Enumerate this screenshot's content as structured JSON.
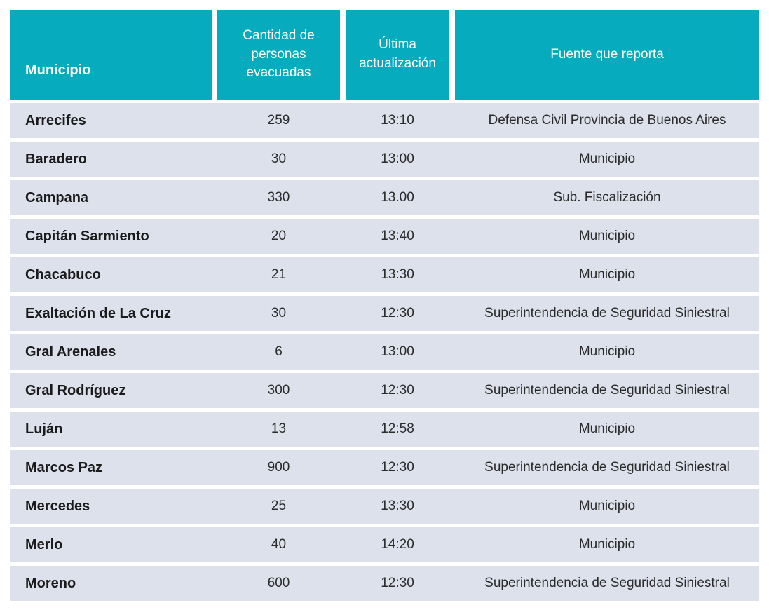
{
  "table": {
    "columns": [
      {
        "key": "municipio",
        "label": "Municipio"
      },
      {
        "key": "evacuados",
        "label": "Cantidad de personas evacuadas"
      },
      {
        "key": "actualizacion",
        "label": "Última actualización"
      },
      {
        "key": "fuente",
        "label": "Fuente que reporta"
      }
    ],
    "rows": [
      {
        "municipio": "Arrecifes",
        "evacuados": "259",
        "actualizacion": "13:10",
        "fuente": "Defensa Civil Provincia de Buenos Aires"
      },
      {
        "municipio": "Baradero",
        "evacuados": "30",
        "actualizacion": "13:00",
        "fuente": "Municipio"
      },
      {
        "municipio": "Campana",
        "evacuados": "330",
        "actualizacion": "13.00",
        "fuente": "Sub. Fiscalización"
      },
      {
        "municipio": "Capitán Sarmiento",
        "evacuados": "20",
        "actualizacion": "13:40",
        "fuente": "Municipio"
      },
      {
        "municipio": "Chacabuco",
        "evacuados": "21",
        "actualizacion": "13:30",
        "fuente": "Municipio"
      },
      {
        "municipio": "Exaltación de La Cruz",
        "evacuados": "30",
        "actualizacion": "12:30",
        "fuente": "Superintendencia de Seguridad Siniestral"
      },
      {
        "municipio": "Gral Arenales",
        "evacuados": "6",
        "actualizacion": "13:00",
        "fuente": "Municipio"
      },
      {
        "municipio": "Gral Rodríguez",
        "evacuados": "300",
        "actualizacion": "12:30",
        "fuente": "Superintendencia de Seguridad Siniestral"
      },
      {
        "municipio": "Luján",
        "evacuados": "13",
        "actualizacion": "12:58",
        "fuente": "Municipio"
      },
      {
        "municipio": "Marcos Paz",
        "evacuados": "900",
        "actualizacion": "12:30",
        "fuente": "Superintendencia de Seguridad Siniestral"
      },
      {
        "municipio": "Mercedes",
        "evacuados": "25",
        "actualizacion": "13:30",
        "fuente": "Municipio"
      },
      {
        "municipio": "Merlo",
        "evacuados": "40",
        "actualizacion": "14:20",
        "fuente": "Municipio"
      },
      {
        "municipio": "Moreno",
        "evacuados": "600",
        "actualizacion": "12:30",
        "fuente": "Superintendencia de Seguridad Siniestral"
      }
    ]
  },
  "colors": {
    "header_bg": "#06acbe",
    "header_text": "#ffffff",
    "row_bg": "#dde1eb",
    "row_gap": "#ffffff",
    "name_text": "#1b1b1b",
    "value_text": "#2b2b2b"
  }
}
